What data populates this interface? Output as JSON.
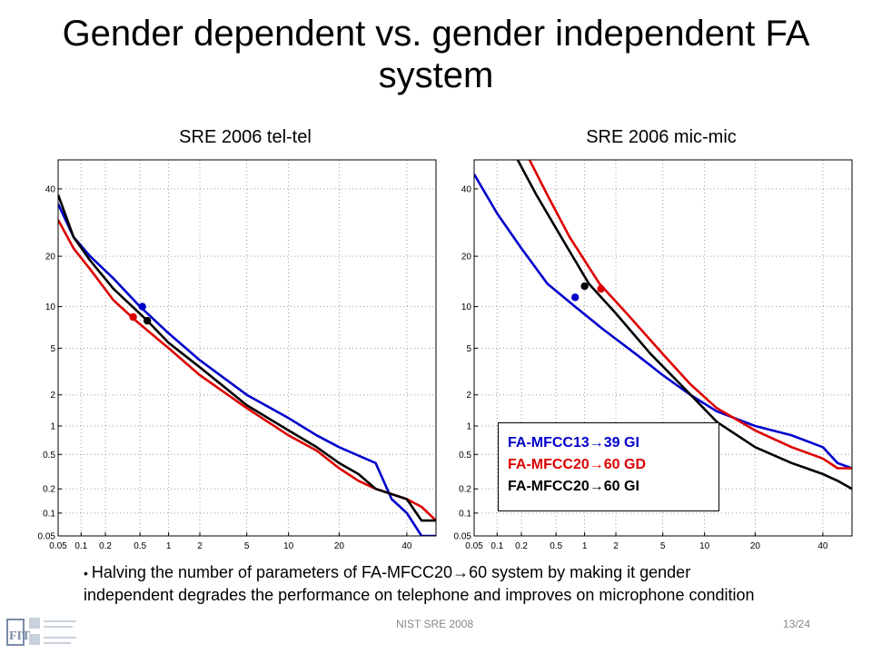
{
  "slide": {
    "title": "Gender dependent vs. gender independent FA system",
    "bullet": "Halving the number of parameters of FA-MFCC20→60 system by making it gender independent degrades the performance on telephone and improves on microphone condition",
    "footer_center": "NIST SRE 2008",
    "footer_page": "13/24"
  },
  "legend": {
    "items": [
      {
        "label": "FA-MFCC13→39 GI",
        "color": "#0000cc"
      },
      {
        "label": "FA-MFCC20→60 GD",
        "color": "#dd0000"
      },
      {
        "label": "FA-MFCC20→60 GI",
        "color": "#000000"
      }
    ]
  },
  "chart_data": [
    {
      "type": "line",
      "title": "SRE 2006 tel-tel",
      "scale": "probit",
      "xlim": [
        0.05,
        50
      ],
      "ylim": [
        0.05,
        50
      ],
      "xticks": [
        0.05,
        0.1,
        0.2,
        0.5,
        1,
        2,
        5,
        10,
        20,
        40
      ],
      "yticks": [
        0.05,
        0.1,
        0.2,
        0.5,
        1,
        2,
        5,
        10,
        20,
        40
      ],
      "xtick_labels": [
        "0.05",
        "0.1",
        "0.2",
        "0.5",
        "1",
        "2",
        "5",
        "10",
        "20",
        "40"
      ],
      "ytick_labels": [
        "0.05",
        "0.1",
        "0.2",
        "0.5",
        "1",
        "2",
        "5",
        "10",
        "20",
        "40"
      ],
      "grid": true,
      "series": [
        {
          "name": "FA-MFCC13→39 GI",
          "color": "#0000cc",
          "x": [
            0.05,
            0.08,
            0.13,
            0.25,
            0.5,
            1,
            2,
            5,
            10,
            15,
            20,
            30,
            35,
            40,
            45,
            50
          ],
          "y": [
            35,
            25,
            20,
            15,
            10,
            6.5,
            4,
            2,
            1.2,
            0.8,
            0.6,
            0.4,
            0.15,
            0.1,
            0.05,
            0.05
          ],
          "marker": {
            "x": 0.53,
            "y": 10
          }
        },
        {
          "name": "FA-MFCC20→60 GD",
          "color": "#dd0000",
          "x": [
            0.05,
            0.08,
            0.13,
            0.25,
            0.45,
            1,
            2,
            5,
            10,
            15,
            20,
            25,
            30,
            40,
            45,
            50
          ],
          "y": [
            30,
            22,
            17,
            11,
            8,
            5,
            3,
            1.5,
            0.8,
            0.55,
            0.35,
            0.25,
            0.2,
            0.15,
            0.12,
            0.08
          ],
          "marker": {
            "x": 0.42,
            "y": 8.5
          }
        },
        {
          "name": "FA-MFCC20→60 GI",
          "color": "#000000",
          "x": [
            0.05,
            0.08,
            0.13,
            0.25,
            0.6,
            1,
            2,
            5,
            10,
            15,
            20,
            25,
            30,
            40,
            45,
            50
          ],
          "y": [
            38,
            25,
            19,
            13,
            8,
            5.5,
            3.5,
            1.6,
            0.9,
            0.6,
            0.4,
            0.3,
            0.2,
            0.15,
            0.08,
            0.08
          ],
          "marker": {
            "x": 0.6,
            "y": 8
          }
        }
      ]
    },
    {
      "type": "line",
      "title": "SRE 2006 mic-mic",
      "scale": "probit",
      "xlim": [
        0.05,
        50
      ],
      "ylim": [
        0.05,
        50
      ],
      "xticks": [
        0.05,
        0.1,
        0.2,
        0.5,
        1,
        2,
        5,
        10,
        20,
        40
      ],
      "yticks": [
        0.05,
        0.1,
        0.2,
        0.5,
        1,
        2,
        5,
        10,
        20,
        40
      ],
      "xtick_labels": [
        "0.05",
        "0.1",
        "0.2",
        "0.5",
        "1",
        "2",
        "5",
        "10",
        "20",
        "40"
      ],
      "ytick_labels": [
        "0.05",
        "0.1",
        "0.2",
        "0.5",
        "1",
        "2",
        "5",
        "10",
        "20",
        "40"
      ],
      "grid": true,
      "series": [
        {
          "name": "FA-MFCC13→39 GI",
          "color": "#0000cc",
          "x": [
            0.05,
            0.1,
            0.2,
            0.4,
            0.8,
            1.5,
            3,
            5,
            8,
            12,
            20,
            30,
            40,
            45,
            50
          ],
          "y": [
            45,
            32,
            22,
            14,
            10,
            7,
            4.5,
            3,
            2,
            1.4,
            1,
            0.8,
            0.6,
            0.4,
            0.35
          ],
          "marker": {
            "x": 0.8,
            "y": 11.5
          }
        },
        {
          "name": "FA-MFCC20→60 GD",
          "color": "#dd0000",
          "x": [
            0.25,
            0.4,
            0.7,
            1.4,
            2.5,
            5,
            8,
            12,
            20,
            30,
            40,
            45,
            50
          ],
          "y": [
            50,
            38,
            25,
            14,
            9,
            4.5,
            2.5,
            1.5,
            0.9,
            0.6,
            0.45,
            0.35,
            0.35
          ],
          "marker": {
            "x": 1.45,
            "y": 13
          }
        },
        {
          "name": "FA-MFCC20→60 GI",
          "color": "#000000",
          "x": [
            0.18,
            0.3,
            0.6,
            1.1,
            2,
            4,
            7,
            12,
            20,
            30,
            40,
            45,
            50
          ],
          "y": [
            50,
            38,
            24,
            14,
            9,
            4.5,
            2.4,
            1.1,
            0.6,
            0.4,
            0.3,
            0.25,
            0.2
          ],
          "marker": {
            "x": 1.0,
            "y": 13.5
          }
        }
      ]
    }
  ]
}
